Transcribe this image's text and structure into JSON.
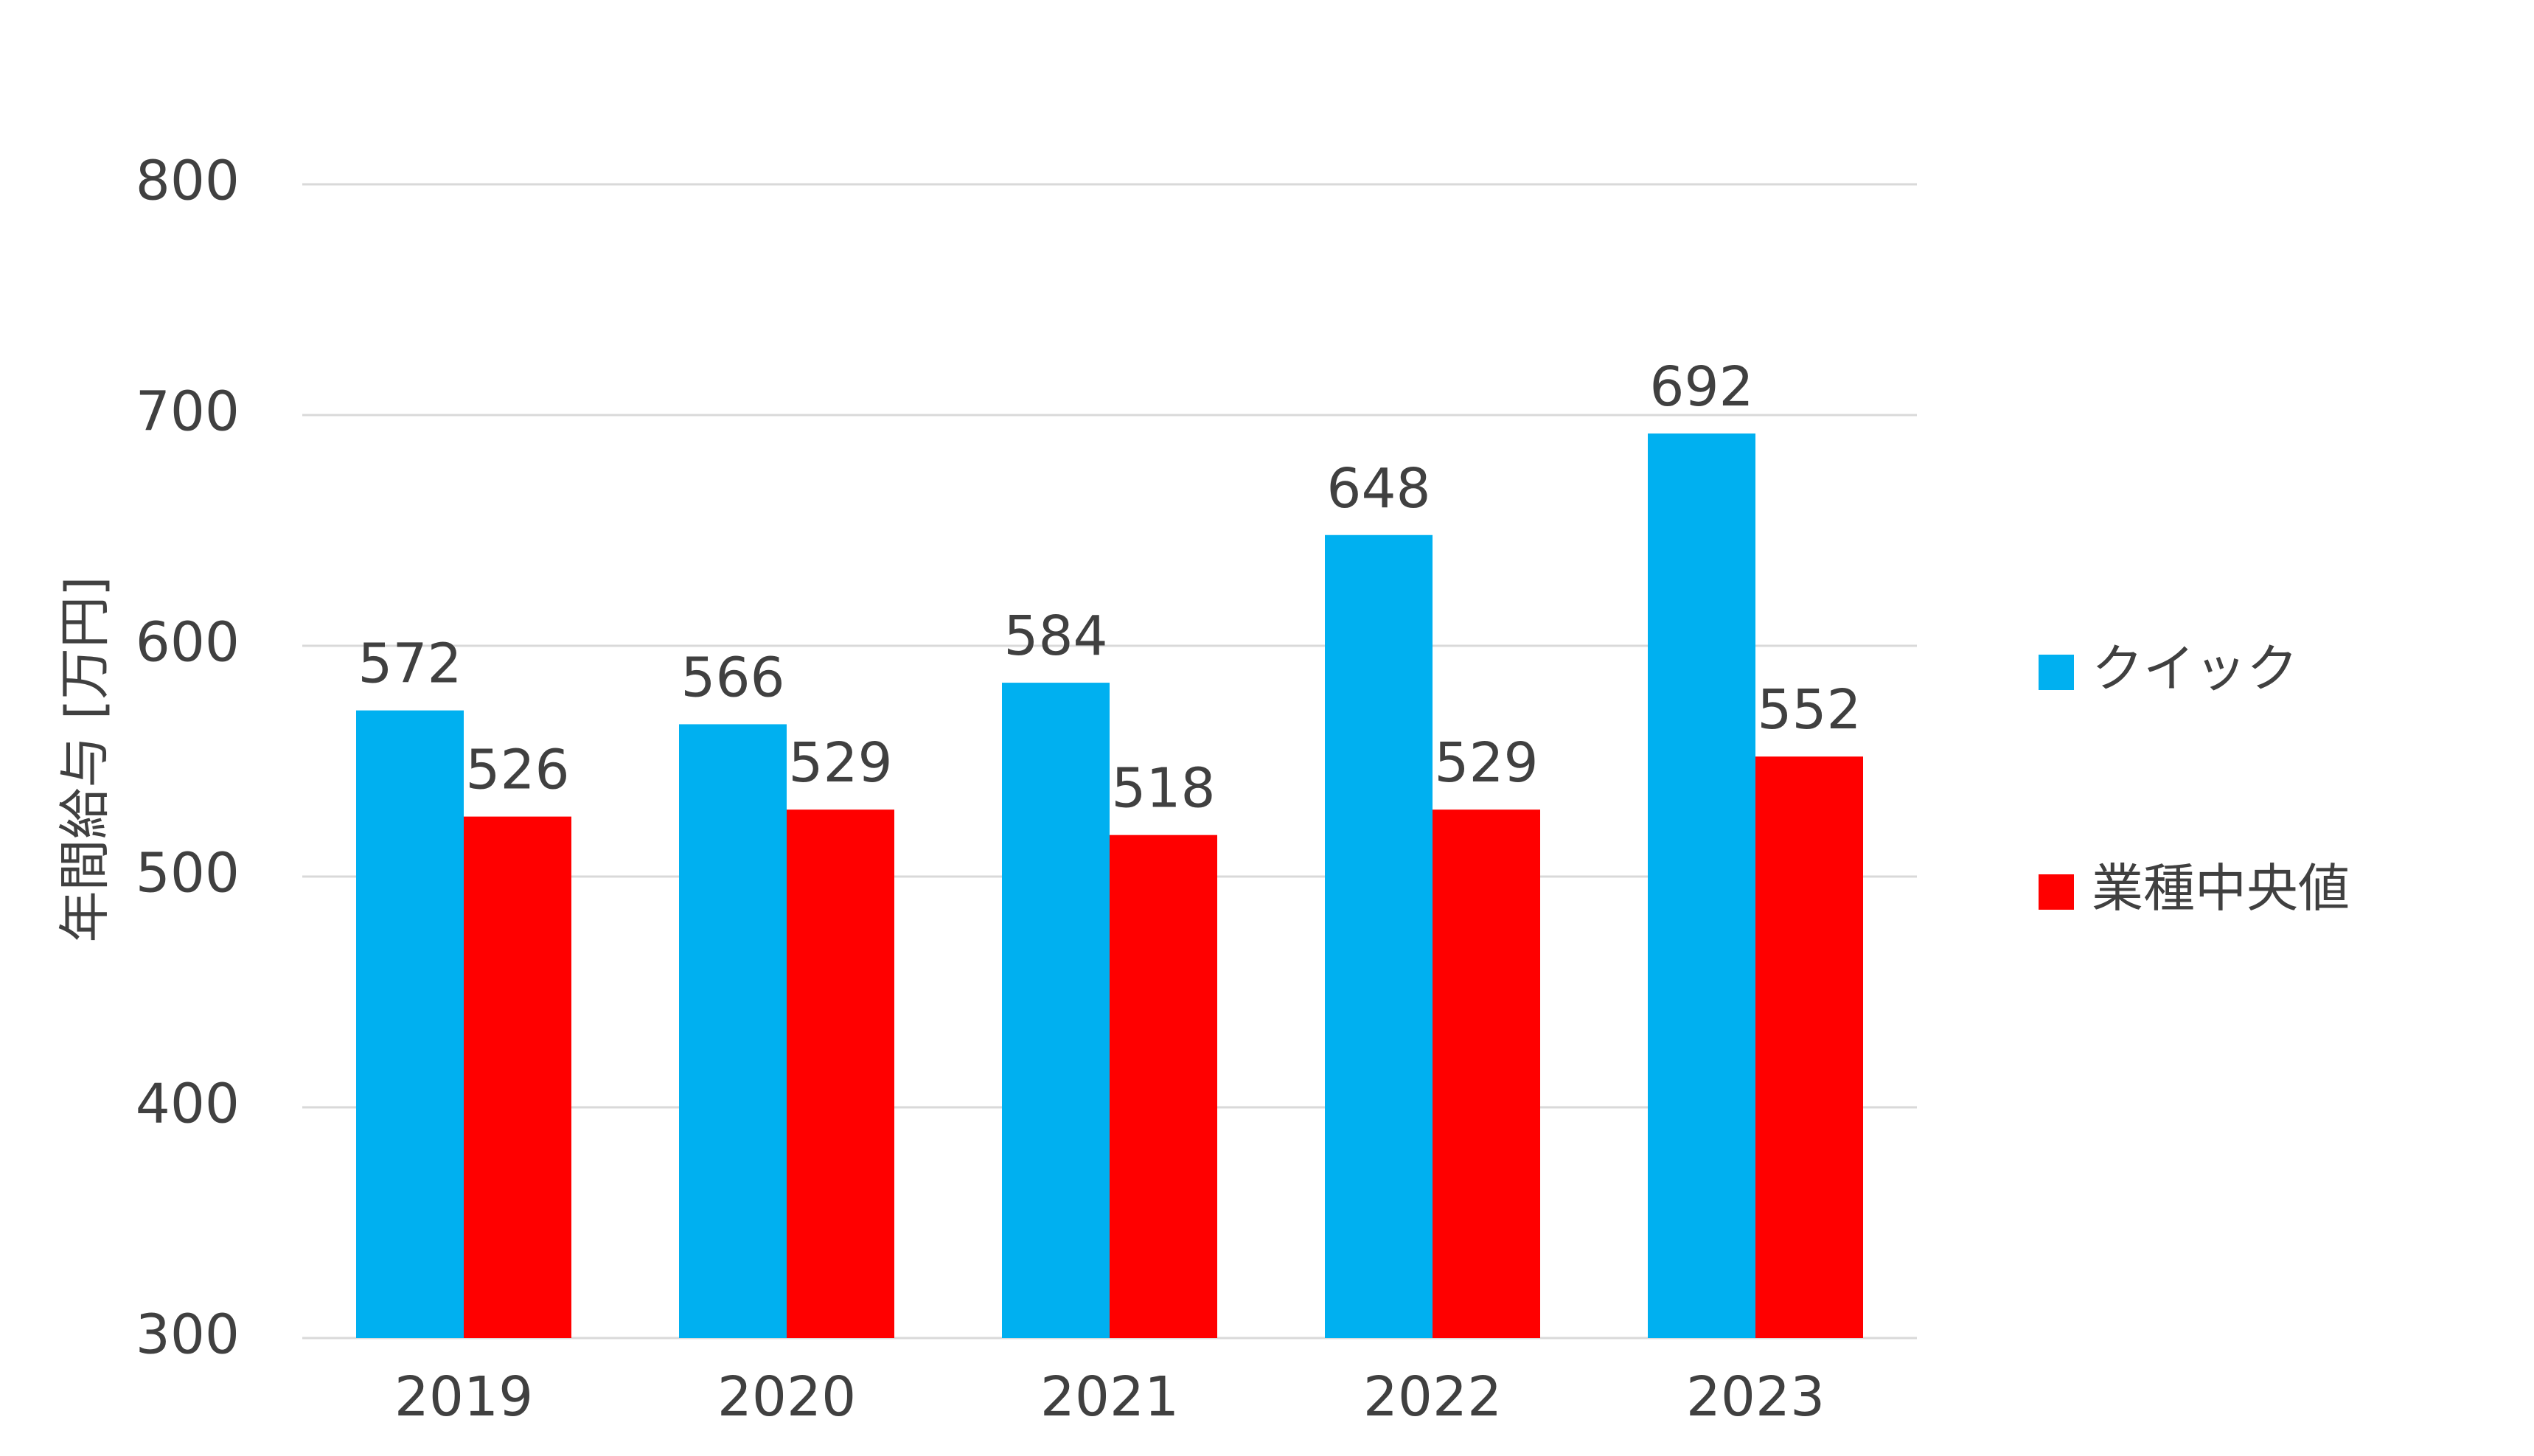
{
  "chart_data": {
    "type": "bar",
    "title": "",
    "xlabel": "",
    "ylabel": "年間給与 [万円]",
    "categories": [
      "2019",
      "2020",
      "2021",
      "2022",
      "2023"
    ],
    "series": [
      {
        "name": "クイック",
        "values": [
          572,
          566,
          584,
          648,
          692
        ],
        "color": "#00B0F0"
      },
      {
        "name": "業種中央値",
        "values": [
          526,
          529,
          518,
          529,
          552
        ],
        "color": "#FF0000"
      }
    ],
    "ylim": [
      300,
      800
    ],
    "yticks": [
      "300",
      "400",
      "500",
      "600",
      "700",
      "800"
    ],
    "data_labels": true,
    "grid": true,
    "legend_position": "right"
  }
}
